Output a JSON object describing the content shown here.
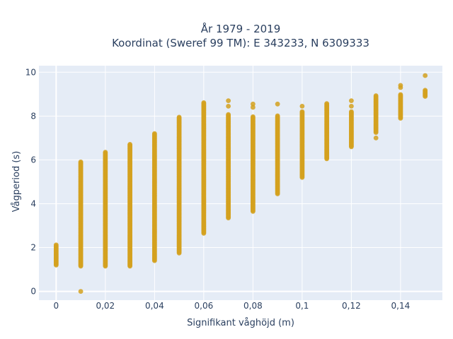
{
  "chart_data": {
    "type": "scatter",
    "title_line1": "År 1979 - 2019",
    "title_line2": "Koordinat (Sweref 99 TM): E 343233, N 6309333",
    "xlabel": "Signifikant våghöjd (m)",
    "ylabel": "Vågperiod (s)",
    "xlim": [
      -0.007,
      0.157
    ],
    "ylim": [
      -0.4,
      10.3
    ],
    "x_ticks": [
      0,
      0.02,
      0.04,
      0.06,
      0.08,
      0.1,
      0.12,
      0.14
    ],
    "x_tick_labels": [
      "0",
      "0,02",
      "0,04",
      "0,06",
      "0,08",
      "0,1",
      "0,12",
      "0,14"
    ],
    "y_ticks": [
      0,
      2,
      4,
      6,
      8,
      10
    ],
    "y_tick_labels": [
      "0",
      "2",
      "4",
      "6",
      "8",
      "10"
    ],
    "grid": true,
    "marker_color": "#d4a11e",
    "plot_bg": "#e5ecf6",
    "columns": [
      {
        "x": 0.0,
        "ymin": 1.2,
        "ymax": 2.1,
        "extra": []
      },
      {
        "x": 0.01,
        "ymin": 1.15,
        "ymax": 5.9,
        "extra": [
          0
        ]
      },
      {
        "x": 0.02,
        "ymin": 1.15,
        "ymax": 6.35,
        "extra": []
      },
      {
        "x": 0.03,
        "ymin": 1.15,
        "ymax": 6.7,
        "extra": []
      },
      {
        "x": 0.04,
        "ymin": 1.4,
        "ymax": 7.2,
        "extra": []
      },
      {
        "x": 0.05,
        "ymin": 1.75,
        "ymax": 7.95,
        "extra": []
      },
      {
        "x": 0.06,
        "ymin": 2.65,
        "ymax": 8.6,
        "extra": []
      },
      {
        "x": 0.07,
        "ymin": 3.35,
        "ymax": 8.05,
        "extra": [
          8.45,
          8.7
        ]
      },
      {
        "x": 0.08,
        "ymin": 3.65,
        "ymax": 7.95,
        "extra": [
          8.4,
          8.55
        ]
      },
      {
        "x": 0.09,
        "ymin": 4.45,
        "ymax": 8.0,
        "extra": [
          8.55
        ]
      },
      {
        "x": 0.1,
        "ymin": 5.2,
        "ymax": 8.2,
        "extra": [
          8.45
        ]
      },
      {
        "x": 0.11,
        "ymin": 6.05,
        "ymax": 8.55,
        "extra": []
      },
      {
        "x": 0.12,
        "ymin": 6.6,
        "ymax": 8.2,
        "extra": [
          8.45,
          8.7
        ]
      },
      {
        "x": 0.13,
        "ymin": 7.25,
        "ymax": 8.95,
        "extra": [
          7.0
        ]
      },
      {
        "x": 0.14,
        "ymin": 7.9,
        "ymax": 9.0,
        "extra": [
          9.3,
          9.4
        ]
      },
      {
        "x": 0.15,
        "ymin": 8.9,
        "ymax": 9.2,
        "extra": [
          9.85
        ]
      }
    ]
  }
}
